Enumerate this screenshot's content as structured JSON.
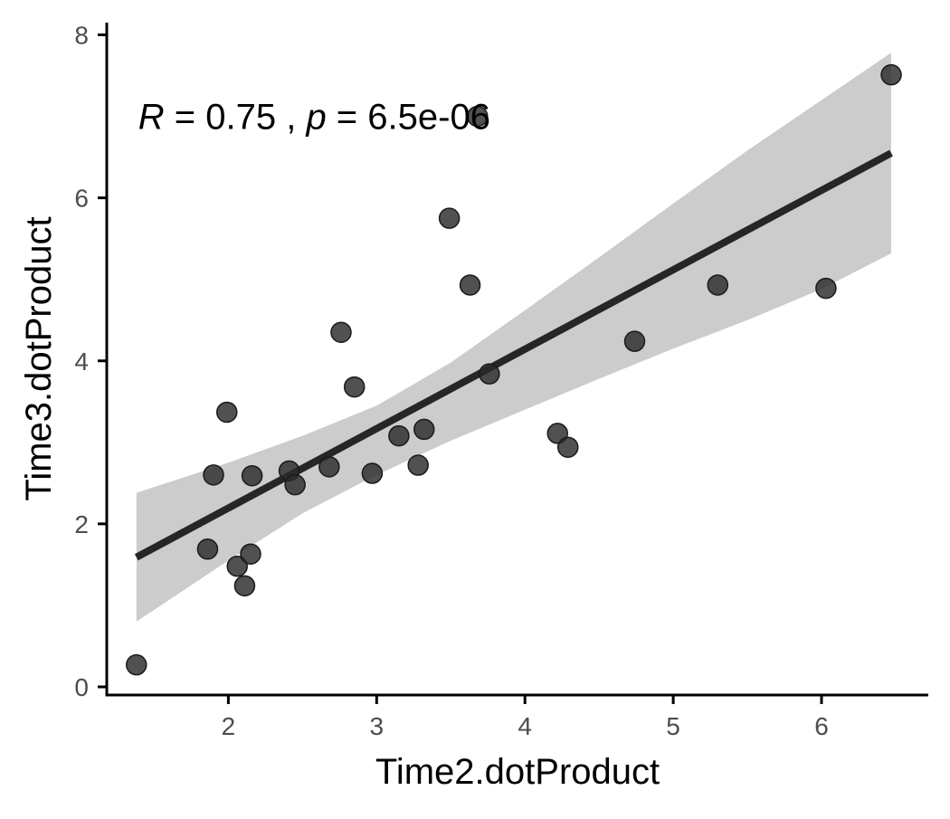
{
  "chart_data": {
    "type": "scatter",
    "title": "",
    "xlabel": "Time2.dotProduct",
    "ylabel": "Time3.dotProduct",
    "xlim": [
      1.18,
      6.72
    ],
    "ylim": [
      -0.1,
      8.15
    ],
    "x_ticks": [
      2,
      3,
      4,
      5,
      6
    ],
    "y_ticks": [
      0,
      2,
      4,
      6,
      8
    ],
    "x_tick_labels": [
      "2",
      "3",
      "4",
      "5",
      "6"
    ],
    "y_tick_labels": [
      "0",
      "2",
      "4",
      "6",
      "8"
    ],
    "grid": false,
    "legend": "none",
    "annotation": {
      "r_symbol": "R",
      "r_text": " = 0.75 , ",
      "p_symbol": "p",
      "p_text": " = 6.5e-06",
      "x": 1.38,
      "y": 7.0
    },
    "points": [
      {
        "x": 1.38,
        "y": 0.27
      },
      {
        "x": 1.86,
        "y": 1.69
      },
      {
        "x": 1.9,
        "y": 2.6
      },
      {
        "x": 1.99,
        "y": 3.37
      },
      {
        "x": 2.06,
        "y": 1.48
      },
      {
        "x": 2.11,
        "y": 1.24
      },
      {
        "x": 2.15,
        "y": 1.63
      },
      {
        "x": 2.16,
        "y": 2.59
      },
      {
        "x": 2.41,
        "y": 2.65
      },
      {
        "x": 2.45,
        "y": 2.48
      },
      {
        "x": 2.68,
        "y": 2.7
      },
      {
        "x": 2.76,
        "y": 4.35
      },
      {
        "x": 2.85,
        "y": 3.68
      },
      {
        "x": 2.97,
        "y": 2.62
      },
      {
        "x": 3.15,
        "y": 3.08
      },
      {
        "x": 3.28,
        "y": 2.72
      },
      {
        "x": 3.32,
        "y": 3.16
      },
      {
        "x": 3.49,
        "y": 5.75
      },
      {
        "x": 3.63,
        "y": 4.93
      },
      {
        "x": 3.68,
        "y": 7.0
      },
      {
        "x": 3.76,
        "y": 3.84
      },
      {
        "x": 4.22,
        "y": 3.11
      },
      {
        "x": 4.29,
        "y": 2.94
      },
      {
        "x": 4.74,
        "y": 4.24
      },
      {
        "x": 5.3,
        "y": 4.93
      },
      {
        "x": 6.03,
        "y": 4.89
      },
      {
        "x": 6.47,
        "y": 7.51
      }
    ],
    "regression": {
      "x": [
        1.38,
        6.47
      ],
      "y": [
        1.59,
        6.55
      ]
    },
    "confidence_band": {
      "x": [
        1.38,
        2.0,
        2.5,
        3.0,
        3.5,
        4.0,
        4.5,
        5.0,
        5.5,
        6.0,
        6.47
      ],
      "lower": [
        0.8,
        1.55,
        2.13,
        2.6,
        3.02,
        3.4,
        3.78,
        4.15,
        4.5,
        4.88,
        5.32
      ],
      "upper": [
        2.38,
        2.75,
        3.08,
        3.45,
        3.98,
        4.62,
        5.27,
        5.93,
        6.58,
        7.2,
        7.78
      ]
    },
    "colors": {
      "point": "#2b2b2b",
      "line": "#262626",
      "band": "#cccccc",
      "axis": "#000000",
      "tick_label": "#4d4d4d"
    }
  }
}
